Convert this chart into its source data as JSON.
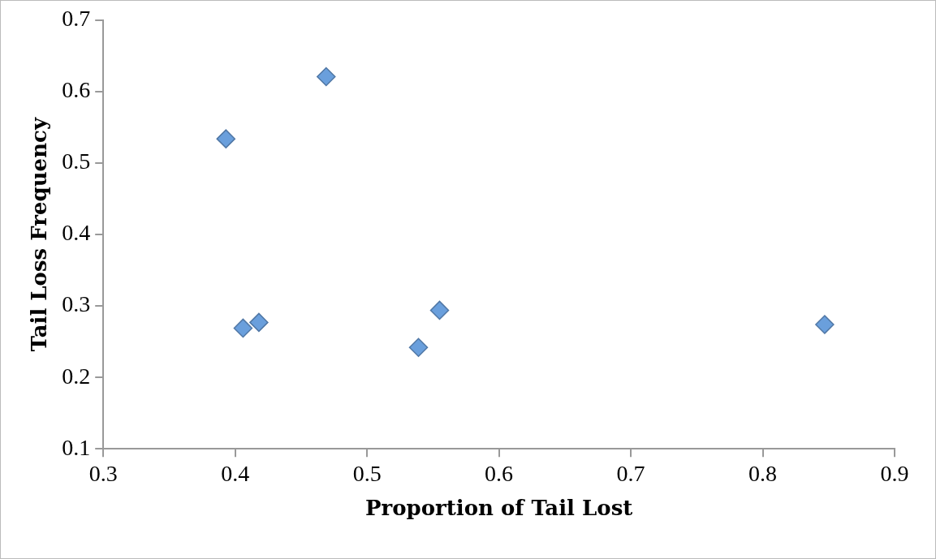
{
  "chart_data": {
    "type": "scatter",
    "xlabel": "Proportion of Tail Lost",
    "ylabel": "Tail Loss Frequency",
    "x": [
      0.393,
      0.469,
      0.406,
      0.418,
      0.539,
      0.555,
      0.847
    ],
    "values": [
      0.534,
      0.621,
      0.269,
      0.277,
      0.242,
      0.294,
      0.274
    ],
    "color": "#6a9fdc",
    "marker": "diamond",
    "grid": false,
    "legend": false,
    "xlim": [
      0.3,
      0.9
    ],
    "xticks": [
      0.3,
      0.4,
      0.5,
      0.6,
      0.7,
      0.8,
      0.9
    ],
    "ylim": [
      0.1,
      0.7
    ],
    "yticks": [
      0.1,
      0.2,
      0.3,
      0.4,
      0.5,
      0.6,
      0.7
    ]
  }
}
